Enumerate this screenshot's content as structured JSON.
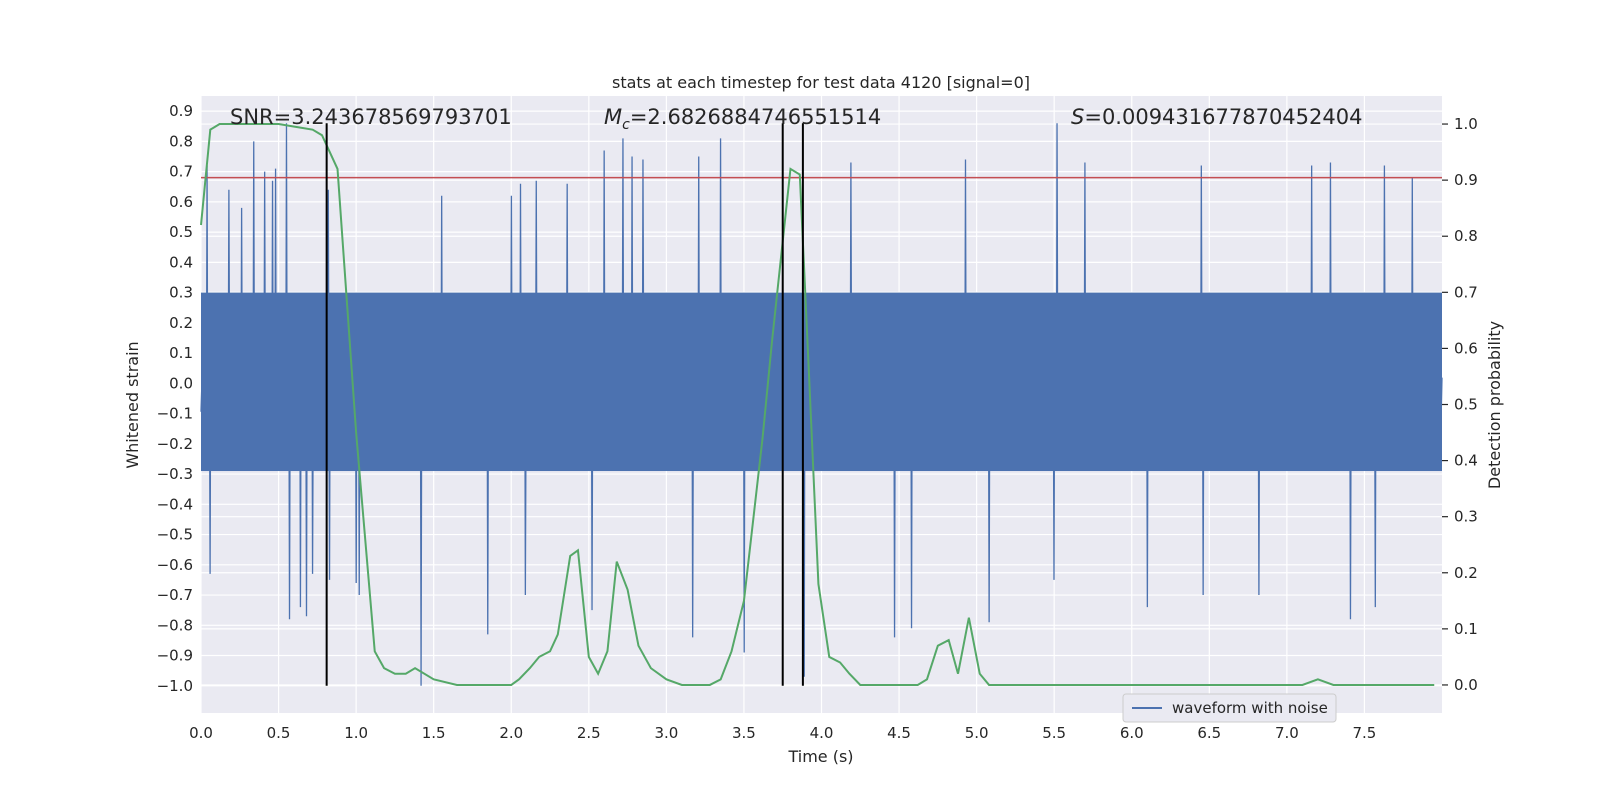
{
  "chart_data": {
    "type": "line",
    "title": "stats at each timestep for test data 4120 [signal=0]",
    "xlabel": "Time (s)",
    "ylabel_left": "Whitened strain",
    "ylabel_right": "Detection probability",
    "xlim": [
      0.0,
      8.0
    ],
    "ylim_left": [
      -1.09,
      0.95
    ],
    "ylim_right": [
      -0.05,
      1.05
    ],
    "x_ticks": [
      "0.0",
      "0.5",
      "1.0",
      "1.5",
      "2.0",
      "2.5",
      "3.0",
      "3.5",
      "4.0",
      "4.5",
      "5.0",
      "5.5",
      "6.0",
      "6.5",
      "7.0",
      "7.5"
    ],
    "x_tick_values": [
      0.0,
      0.5,
      1.0,
      1.5,
      2.0,
      2.5,
      3.0,
      3.5,
      4.0,
      4.5,
      5.0,
      5.5,
      6.0,
      6.5,
      7.0,
      7.5
    ],
    "y_left_ticks": [
      "0.9",
      "0.8",
      "0.7",
      "0.6",
      "0.5",
      "0.4",
      "0.3",
      "0.2",
      "0.1",
      "0.0",
      "−0.1",
      "−0.2",
      "−0.3",
      "−0.4",
      "−0.5",
      "−0.6",
      "−0.7",
      "−0.8",
      "−0.9",
      "−1.0"
    ],
    "y_left_tick_values": [
      0.9,
      0.8,
      0.7,
      0.6,
      0.5,
      0.4,
      0.3,
      0.2,
      0.1,
      0.0,
      -0.1,
      -0.2,
      -0.3,
      -0.4,
      -0.5,
      -0.6,
      -0.7,
      -0.8,
      -0.9,
      -1.0
    ],
    "y_right_ticks": [
      "1.0",
      "0.9",
      "0.8",
      "0.7",
      "0.6",
      "0.5",
      "0.4",
      "0.3",
      "0.2",
      "0.1",
      "0.0"
    ],
    "y_right_tick_values": [
      1.0,
      0.9,
      0.8,
      0.7,
      0.6,
      0.5,
      0.4,
      0.3,
      0.2,
      0.1,
      0.0
    ],
    "annotations": {
      "snr": "SNR=3.243678569793701",
      "mc_symbol": "M",
      "mc_sub": "c",
      "mc_value": "=2.6826884746551514",
      "s_symbol": "S",
      "s_value": "=0.009431677870452404"
    },
    "threshold": {
      "value": 0.68,
      "axis": "left",
      "color": "#c44e52"
    },
    "vertical_lines": [
      {
        "x": 0.81,
        "y_top": 0.86
      },
      {
        "x": 3.75,
        "y_top": 0.86
      },
      {
        "x": 3.88,
        "y_top": 0.86
      }
    ],
    "series": [
      {
        "name": "waveform with noise",
        "color": "#4c72b0",
        "kind": "noise-waveform",
        "n_samples": 2048,
        "core_band": [
          -0.29,
          0.3
        ],
        "seed": 4120,
        "spikes": [
          {
            "x": 0.04,
            "y": 0.72
          },
          {
            "x": 0.06,
            "y": -0.63
          },
          {
            "x": 0.18,
            "y": 0.64
          },
          {
            "x": 0.26,
            "y": 0.58
          },
          {
            "x": 0.34,
            "y": 0.8
          },
          {
            "x": 0.41,
            "y": 0.7
          },
          {
            "x": 0.46,
            "y": 0.67
          },
          {
            "x": 0.48,
            "y": 0.71
          },
          {
            "x": 0.55,
            "y": 0.86
          },
          {
            "x": 0.57,
            "y": -0.78
          },
          {
            "x": 0.64,
            "y": -0.74
          },
          {
            "x": 0.68,
            "y": -0.77
          },
          {
            "x": 0.72,
            "y": -0.63
          },
          {
            "x": 0.82,
            "y": 0.64
          },
          {
            "x": 0.83,
            "y": -0.65
          },
          {
            "x": 1.0,
            "y": -0.66
          },
          {
            "x": 1.02,
            "y": -0.7
          },
          {
            "x": 1.42,
            "y": -1.0
          },
          {
            "x": 1.55,
            "y": 0.62
          },
          {
            "x": 1.85,
            "y": -0.83
          },
          {
            "x": 2.0,
            "y": 0.62
          },
          {
            "x": 2.06,
            "y": 0.66
          },
          {
            "x": 2.09,
            "y": -0.7
          },
          {
            "x": 2.16,
            "y": 0.67
          },
          {
            "x": 2.36,
            "y": 0.66
          },
          {
            "x": 2.52,
            "y": -0.75
          },
          {
            "x": 2.6,
            "y": 0.77
          },
          {
            "x": 2.72,
            "y": 0.81
          },
          {
            "x": 2.78,
            "y": 0.75
          },
          {
            "x": 2.85,
            "y": 0.74
          },
          {
            "x": 3.17,
            "y": -0.84
          },
          {
            "x": 3.21,
            "y": 0.75
          },
          {
            "x": 3.35,
            "y": 0.81
          },
          {
            "x": 3.5,
            "y": -0.89
          },
          {
            "x": 3.89,
            "y": -0.97
          },
          {
            "x": 4.19,
            "y": 0.73
          },
          {
            "x": 4.47,
            "y": -0.84
          },
          {
            "x": 4.58,
            "y": -0.81
          },
          {
            "x": 4.93,
            "y": 0.74
          },
          {
            "x": 5.08,
            "y": -0.79
          },
          {
            "x": 5.52,
            "y": 0.86
          },
          {
            "x": 5.5,
            "y": -0.65
          },
          {
            "x": 5.7,
            "y": 0.73
          },
          {
            "x": 6.1,
            "y": -0.74
          },
          {
            "x": 6.45,
            "y": 0.72
          },
          {
            "x": 6.46,
            "y": -0.7
          },
          {
            "x": 6.82,
            "y": -0.7
          },
          {
            "x": 7.16,
            "y": 0.72
          },
          {
            "x": 7.28,
            "y": 0.73
          },
          {
            "x": 7.41,
            "y": -0.78
          },
          {
            "x": 7.57,
            "y": -0.74
          },
          {
            "x": 7.63,
            "y": 0.72
          },
          {
            "x": 7.81,
            "y": 0.68
          }
        ]
      },
      {
        "name": "Detection probability",
        "color": "#55a868",
        "axis": "right",
        "x": [
          0.0,
          0.06,
          0.12,
          0.25,
          0.5,
          0.72,
          0.78,
          0.88,
          1.0,
          1.12,
          1.18,
          1.25,
          1.32,
          1.38,
          1.5,
          1.65,
          1.85,
          2.0,
          2.05,
          2.12,
          2.18,
          2.25,
          2.3,
          2.38,
          2.43,
          2.5,
          2.56,
          2.62,
          2.68,
          2.75,
          2.82,
          2.9,
          3.0,
          3.1,
          3.2,
          3.28,
          3.35,
          3.42,
          3.5,
          3.62,
          3.68,
          3.8,
          3.86,
          3.92,
          3.98,
          4.05,
          4.12,
          4.18,
          4.25,
          4.35,
          4.5,
          4.62,
          4.68,
          4.75,
          4.82,
          4.88,
          4.95,
          5.02,
          5.08,
          5.2,
          5.5,
          5.8,
          6.2,
          6.8,
          7.1,
          7.2,
          7.3,
          7.5,
          7.95
        ],
        "values": [
          0.82,
          0.99,
          1.0,
          1.0,
          1.0,
          0.99,
          0.98,
          0.92,
          0.45,
          0.06,
          0.03,
          0.02,
          0.02,
          0.03,
          0.01,
          0.0,
          0.0,
          0.0,
          0.01,
          0.03,
          0.05,
          0.06,
          0.09,
          0.23,
          0.24,
          0.05,
          0.02,
          0.06,
          0.22,
          0.17,
          0.07,
          0.03,
          0.01,
          0.0,
          0.0,
          0.0,
          0.01,
          0.06,
          0.15,
          0.44,
          0.61,
          0.92,
          0.91,
          0.55,
          0.18,
          0.05,
          0.04,
          0.02,
          0.0,
          0.0,
          0.0,
          0.0,
          0.01,
          0.07,
          0.08,
          0.02,
          0.12,
          0.02,
          0.0,
          0.0,
          0.0,
          0.0,
          0.0,
          0.0,
          0.0,
          0.01,
          0.0,
          0.0,
          0.0
        ]
      }
    ],
    "legend": {
      "placement": "lower-right",
      "entries": [
        "waveform with noise"
      ]
    }
  }
}
